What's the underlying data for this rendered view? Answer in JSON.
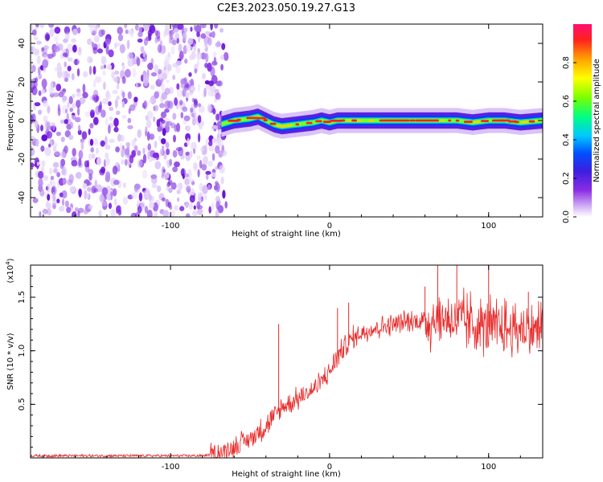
{
  "title": "C2E3.2023.050.19.27.G13",
  "chart_data": [
    {
      "type": "heatmap",
      "xlabel": "Height of straight line (km)",
      "ylabel": "Frequency (Hz)",
      "xlim": [
        -188,
        134
      ],
      "ylim": [
        -50,
        50
      ],
      "xticks": [
        -100,
        0,
        100
      ],
      "yticks": [
        -40,
        -20,
        0,
        20,
        40
      ],
      "colorbar": {
        "label": "Normalized spectral amplitude",
        "range": [
          0,
          1
        ],
        "ticks": [
          "0.0",
          "0.2",
          "0.4",
          "0.6",
          "0.8"
        ],
        "colormap": [
          "#ffffff",
          "#cfa8f5",
          "#8a2be2",
          "#3b1fe0",
          "#0050ff",
          "#00c8ff",
          "#00ff80",
          "#7cff00",
          "#ffff00",
          "#ffa000",
          "#ff2020",
          "#ff1070"
        ]
      },
      "signal_center_hz": [
        [
          -68,
          -2
        ],
        [
          -60,
          0
        ],
        [
          -50,
          1
        ],
        [
          -45,
          2
        ],
        [
          -40,
          0
        ],
        [
          -35,
          -2
        ],
        [
          -30,
          -3
        ],
        [
          -20,
          -2
        ],
        [
          -10,
          -1
        ],
        [
          -5,
          0
        ],
        [
          0,
          -1
        ],
        [
          5,
          0
        ],
        [
          10,
          0
        ],
        [
          30,
          0
        ],
        [
          60,
          0
        ],
        [
          80,
          0
        ],
        [
          90,
          -1
        ],
        [
          100,
          0
        ],
        [
          110,
          0
        ],
        [
          120,
          -1
        ],
        [
          134,
          0
        ]
      ],
      "noise_region_km": [
        -188,
        -68
      ]
    },
    {
      "type": "line",
      "xlabel": "Height of straight line (km)",
      "ylabel": "SNR (10 * v/v)",
      "yunit": "(x10",
      "yunit_exp": "4",
      "yunit_close": ")",
      "xlim": [
        -188,
        134
      ],
      "ylim": [
        0,
        1.8
      ],
      "xticks": [
        -100,
        0,
        100
      ],
      "yticks": [
        "0.5",
        "1.0",
        "1.5"
      ],
      "series": [
        {
          "color": "#e82a2a",
          "envelope": [
            [
              -188,
              0.02
            ],
            [
              -80,
              0.02
            ],
            [
              -70,
              0.04
            ],
            [
              -60,
              0.1
            ],
            [
              -50,
              0.18
            ],
            [
              -40,
              0.3
            ],
            [
              -35,
              0.38
            ],
            [
              -30,
              0.47
            ],
            [
              -20,
              0.55
            ],
            [
              -10,
              0.64
            ],
            [
              -5,
              0.72
            ],
            [
              0,
              0.8
            ],
            [
              5,
              0.95
            ],
            [
              10,
              1.05
            ],
            [
              15,
              1.12
            ],
            [
              20,
              1.17
            ],
            [
              30,
              1.22
            ],
            [
              40,
              1.25
            ],
            [
              50,
              1.27
            ],
            [
              60,
              1.28
            ],
            [
              70,
              1.3
            ],
            [
              80,
              1.28
            ],
            [
              90,
              1.25
            ],
            [
              100,
              1.22
            ],
            [
              110,
              1.2
            ],
            [
              120,
              1.2
            ],
            [
              134,
              1.2
            ]
          ],
          "spikes": [
            [
              -32,
              1.25
            ],
            [
              5,
              1.4
            ],
            [
              12,
              1.45
            ],
            [
              60,
              1.6
            ],
            [
              68,
              1.8
            ],
            [
              80,
              1.8
            ],
            [
              100,
              1.8
            ],
            [
              125,
              1.55
            ]
          ]
        }
      ]
    }
  ]
}
